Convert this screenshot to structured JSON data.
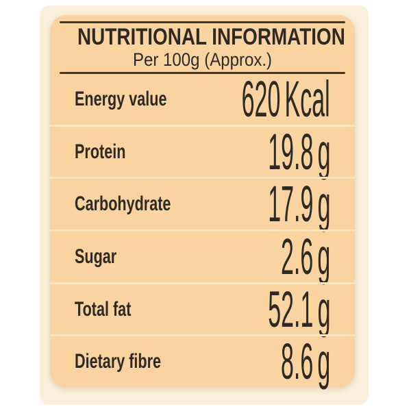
{
  "label": {
    "title": "NUTRITIONAL INFORMATION",
    "subtitle": "Per 100g (Approx.)",
    "rows": [
      {
        "name": "Energy value",
        "value": "620",
        "unit": "Kcal"
      },
      {
        "name": "Protein",
        "value": "19.8",
        "unit": "g"
      },
      {
        "name": "Carbohydrate",
        "value": "17.9",
        "unit": "g"
      },
      {
        "name": "Sugar",
        "value": "2.6",
        "unit": "g"
      },
      {
        "name": "Total fat",
        "value": "52.1",
        "unit": "g"
      },
      {
        "name": "Dietary fibre",
        "value": "8.6",
        "unit": "g"
      }
    ],
    "colors": {
      "page_bg": "#ffffff",
      "backdrop_bg": "#faefdb",
      "panel_bg": "#f9d3a0",
      "rule_color": "#3c382e",
      "separator_color": "#fce4c0",
      "text_color": "#2e2a23"
    }
  }
}
